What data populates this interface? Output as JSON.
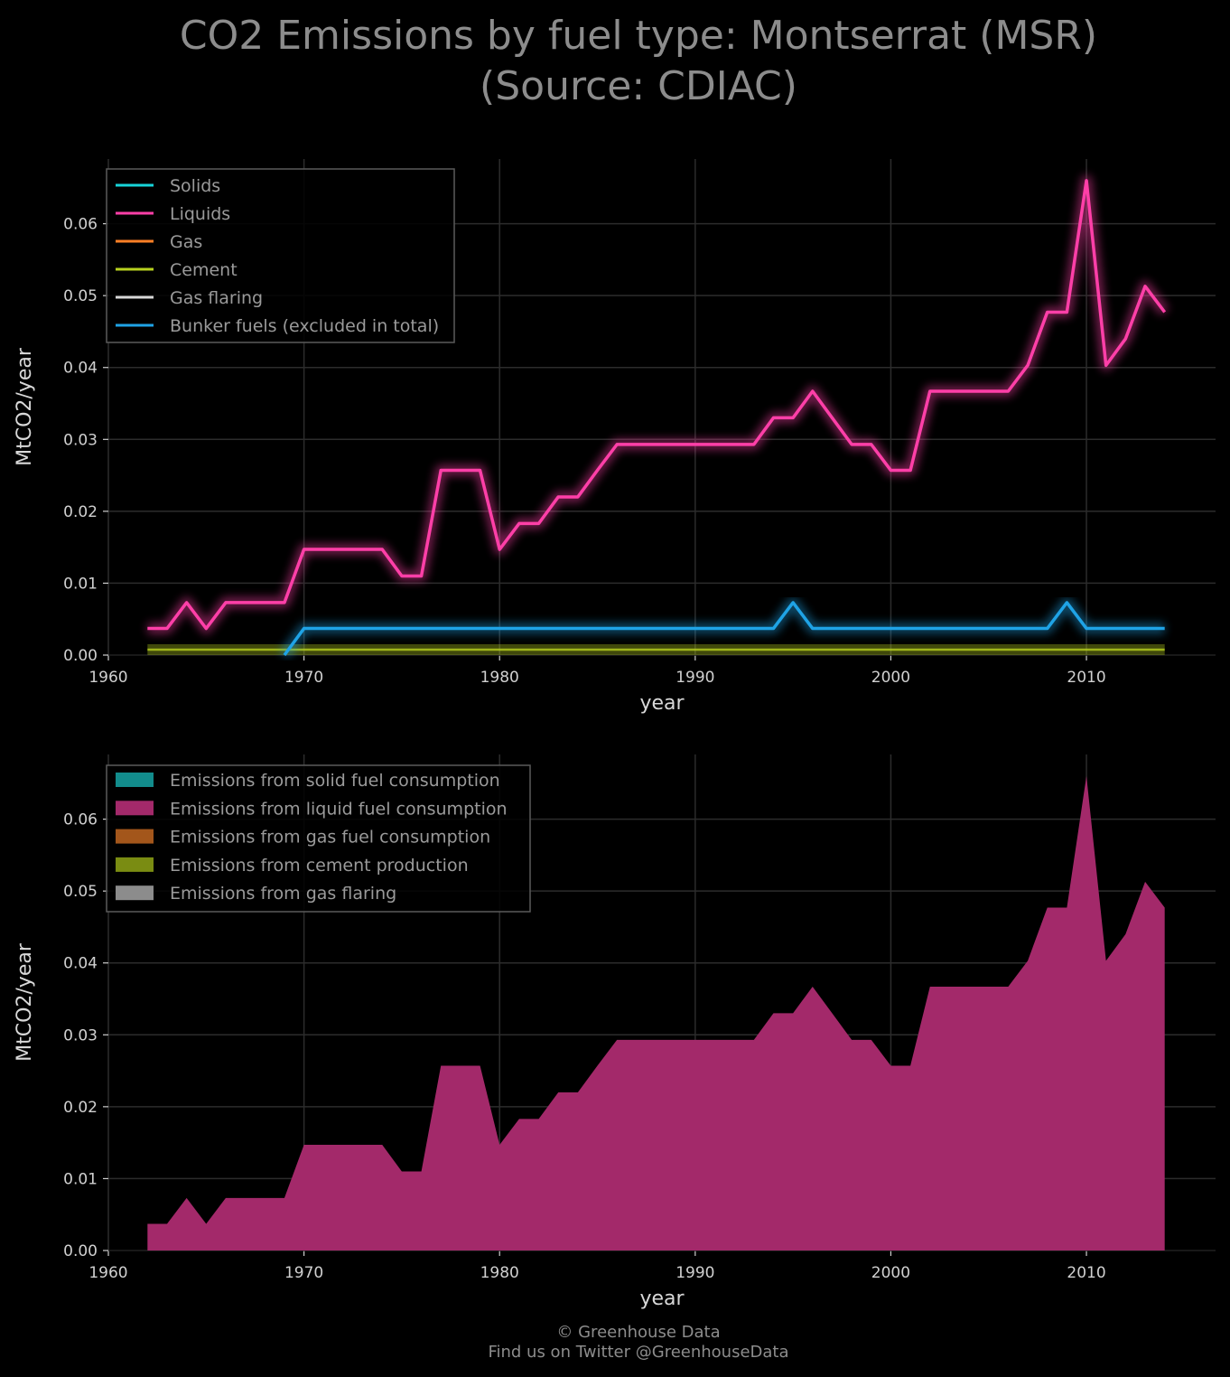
{
  "title_line1": "CO2 Emissions by fuel type: Montserrat (MSR)",
  "title_line2": "(Source: CDIAC)",
  "footer_line1": "© Greenhouse Data",
  "footer_line2": "Find us on Twitter @GreenhouseData",
  "colors": {
    "solids": "#17d4d9",
    "liquids": "#ff3fa8",
    "gas": "#ff8026",
    "cement": "#b7d11f",
    "flaring": "#d8d8d8",
    "bunker": "#1fa3e6",
    "area_solid": "#128c8c",
    "area_liquid": "#a3296a",
    "area_gas": "#a3561b",
    "area_cement": "#7a8c12",
    "area_flaring": "#8c8c8c"
  },
  "chart_data": [
    {
      "type": "line",
      "xlabel": "year",
      "ylabel": "MtCO2/year",
      "xlim": [
        1960,
        2016.6
      ],
      "ylim": [
        0,
        0.069
      ],
      "xticks": [
        "1960",
        "1970",
        "1980",
        "1990",
        "2000",
        "2010"
      ],
      "yticks": [
        "0.00",
        "0.01",
        "0.02",
        "0.03",
        "0.04",
        "0.05",
        "0.06"
      ],
      "grid": true,
      "legend_position": "top-left",
      "x": [
        1962,
        1963,
        1964,
        1965,
        1966,
        1967,
        1968,
        1969,
        1970,
        1971,
        1972,
        1973,
        1974,
        1975,
        1976,
        1977,
        1978,
        1979,
        1980,
        1981,
        1982,
        1983,
        1984,
        1985,
        1986,
        1987,
        1988,
        1989,
        1990,
        1991,
        1992,
        1993,
        1994,
        1995,
        1996,
        1997,
        1998,
        1999,
        2000,
        2001,
        2002,
        2003,
        2004,
        2005,
        2006,
        2007,
        2008,
        2009,
        2010,
        2011,
        2012,
        2013,
        2014
      ],
      "series": [
        {
          "name": "Solids",
          "key": "solids",
          "values": [
            0,
            0,
            0,
            0,
            0,
            0,
            0,
            0,
            0,
            0,
            0,
            0,
            0,
            0,
            0,
            0,
            0,
            0,
            0,
            0,
            0,
            0,
            0,
            0,
            0,
            0,
            0,
            0,
            0,
            0,
            0,
            0,
            0,
            0,
            0,
            0,
            0,
            0,
            0,
            0,
            0,
            0,
            0,
            0,
            0,
            0,
            0,
            0,
            0,
            0,
            0,
            0,
            0
          ]
        },
        {
          "name": "Liquids",
          "key": "liquids",
          "values": [
            0.0037,
            0.0037,
            0.0073,
            0.0037,
            0.0073,
            0.0073,
            0.0073,
            0.0073,
            0.0147,
            0.0147,
            0.0147,
            0.0147,
            0.0147,
            0.011,
            0.011,
            0.0257,
            0.0257,
            0.0257,
            0.0147,
            0.0183,
            0.0183,
            0.022,
            0.022,
            0.0257,
            0.0293,
            0.0293,
            0.0293,
            0.0293,
            0.0293,
            0.0293,
            0.0293,
            0.0293,
            0.033,
            0.033,
            0.0367,
            0.033,
            0.0293,
            0.0293,
            0.0257,
            0.0257,
            0.0367,
            0.0367,
            0.0367,
            0.0367,
            0.0367,
            0.0403,
            0.0477,
            0.0477,
            0.066,
            0.0403,
            0.044,
            0.0513,
            0.0477
          ]
        },
        {
          "name": "Gas",
          "key": "gas",
          "values": [
            0,
            0,
            0,
            0,
            0,
            0,
            0,
            0,
            0,
            0,
            0,
            0,
            0,
            0,
            0,
            0,
            0,
            0,
            0,
            0,
            0,
            0,
            0,
            0,
            0,
            0,
            0,
            0,
            0,
            0,
            0,
            0,
            0,
            0,
            0,
            0,
            0,
            0,
            0,
            0,
            0,
            0,
            0,
            0,
            0,
            0,
            0,
            0,
            0,
            0,
            0,
            0,
            0
          ]
        },
        {
          "name": "Cement",
          "key": "cement",
          "values": [
            0,
            0,
            0,
            0,
            0,
            0,
            0,
            0,
            0,
            0,
            0,
            0,
            0,
            0,
            0,
            0,
            0,
            0,
            0,
            0,
            0,
            0,
            0,
            0,
            0,
            0,
            0,
            0,
            0,
            0,
            0,
            0,
            0,
            0,
            0,
            0,
            0,
            0,
            0,
            0,
            0,
            0,
            0,
            0,
            0,
            0,
            0,
            0,
            0,
            0,
            0,
            0,
            0
          ]
        },
        {
          "name": "Gas flaring",
          "key": "flaring",
          "values": [
            0,
            0,
            0,
            0,
            0,
            0,
            0,
            0,
            0,
            0,
            0,
            0,
            0,
            0,
            0,
            0,
            0,
            0,
            0,
            0,
            0,
            0,
            0,
            0,
            0,
            0,
            0,
            0,
            0,
            0,
            0,
            0,
            0,
            0,
            0,
            0,
            0,
            0,
            0,
            0,
            0,
            0,
            0,
            0,
            0,
            0,
            0,
            0,
            0,
            0,
            0,
            0,
            0
          ]
        },
        {
          "name": "Bunker fuels (excluded in total)",
          "key": "bunker",
          "values": [
            0,
            0,
            0,
            0,
            0,
            0,
            0,
            0,
            0.0037,
            0.0037,
            0.0037,
            0.0037,
            0.0037,
            0.0037,
            0.0037,
            0.0037,
            0.0037,
            0.0037,
            0.0037,
            0.0037,
            0.0037,
            0.0037,
            0.0037,
            0.0037,
            0.0037,
            0.0037,
            0.0037,
            0.0037,
            0.0037,
            0.0037,
            0.0037,
            0.0037,
            0.0037,
            0.0073,
            0.0037,
            0.0037,
            0.0037,
            0.0037,
            0.0037,
            0.0037,
            0.0037,
            0.0037,
            0.0037,
            0.0037,
            0.0037,
            0.0037,
            0.0037,
            0.0073,
            0.0037,
            0.0037,
            0.0037,
            0.0037,
            0.0037
          ]
        }
      ]
    },
    {
      "type": "area",
      "xlabel": "year",
      "ylabel": "MtCO2/year",
      "xlim": [
        1960,
        2016.6
      ],
      "ylim": [
        0,
        0.069
      ],
      "xticks": [
        "1960",
        "1970",
        "1980",
        "1990",
        "2000",
        "2010"
      ],
      "yticks": [
        "0.00",
        "0.01",
        "0.02",
        "0.03",
        "0.04",
        "0.05",
        "0.06"
      ],
      "grid": true,
      "stacked": true,
      "legend_position": "top-left",
      "series": [
        {
          "name": "Emissions from solid fuel consumption",
          "key": "area_solid"
        },
        {
          "name": "Emissions from liquid fuel consumption",
          "key": "area_liquid"
        },
        {
          "name": "Emissions from gas fuel consumption",
          "key": "area_gas"
        },
        {
          "name": "Emissions from cement production",
          "key": "area_cement"
        },
        {
          "name": "Emissions from gas flaring",
          "key": "area_flaring"
        }
      ]
    }
  ]
}
